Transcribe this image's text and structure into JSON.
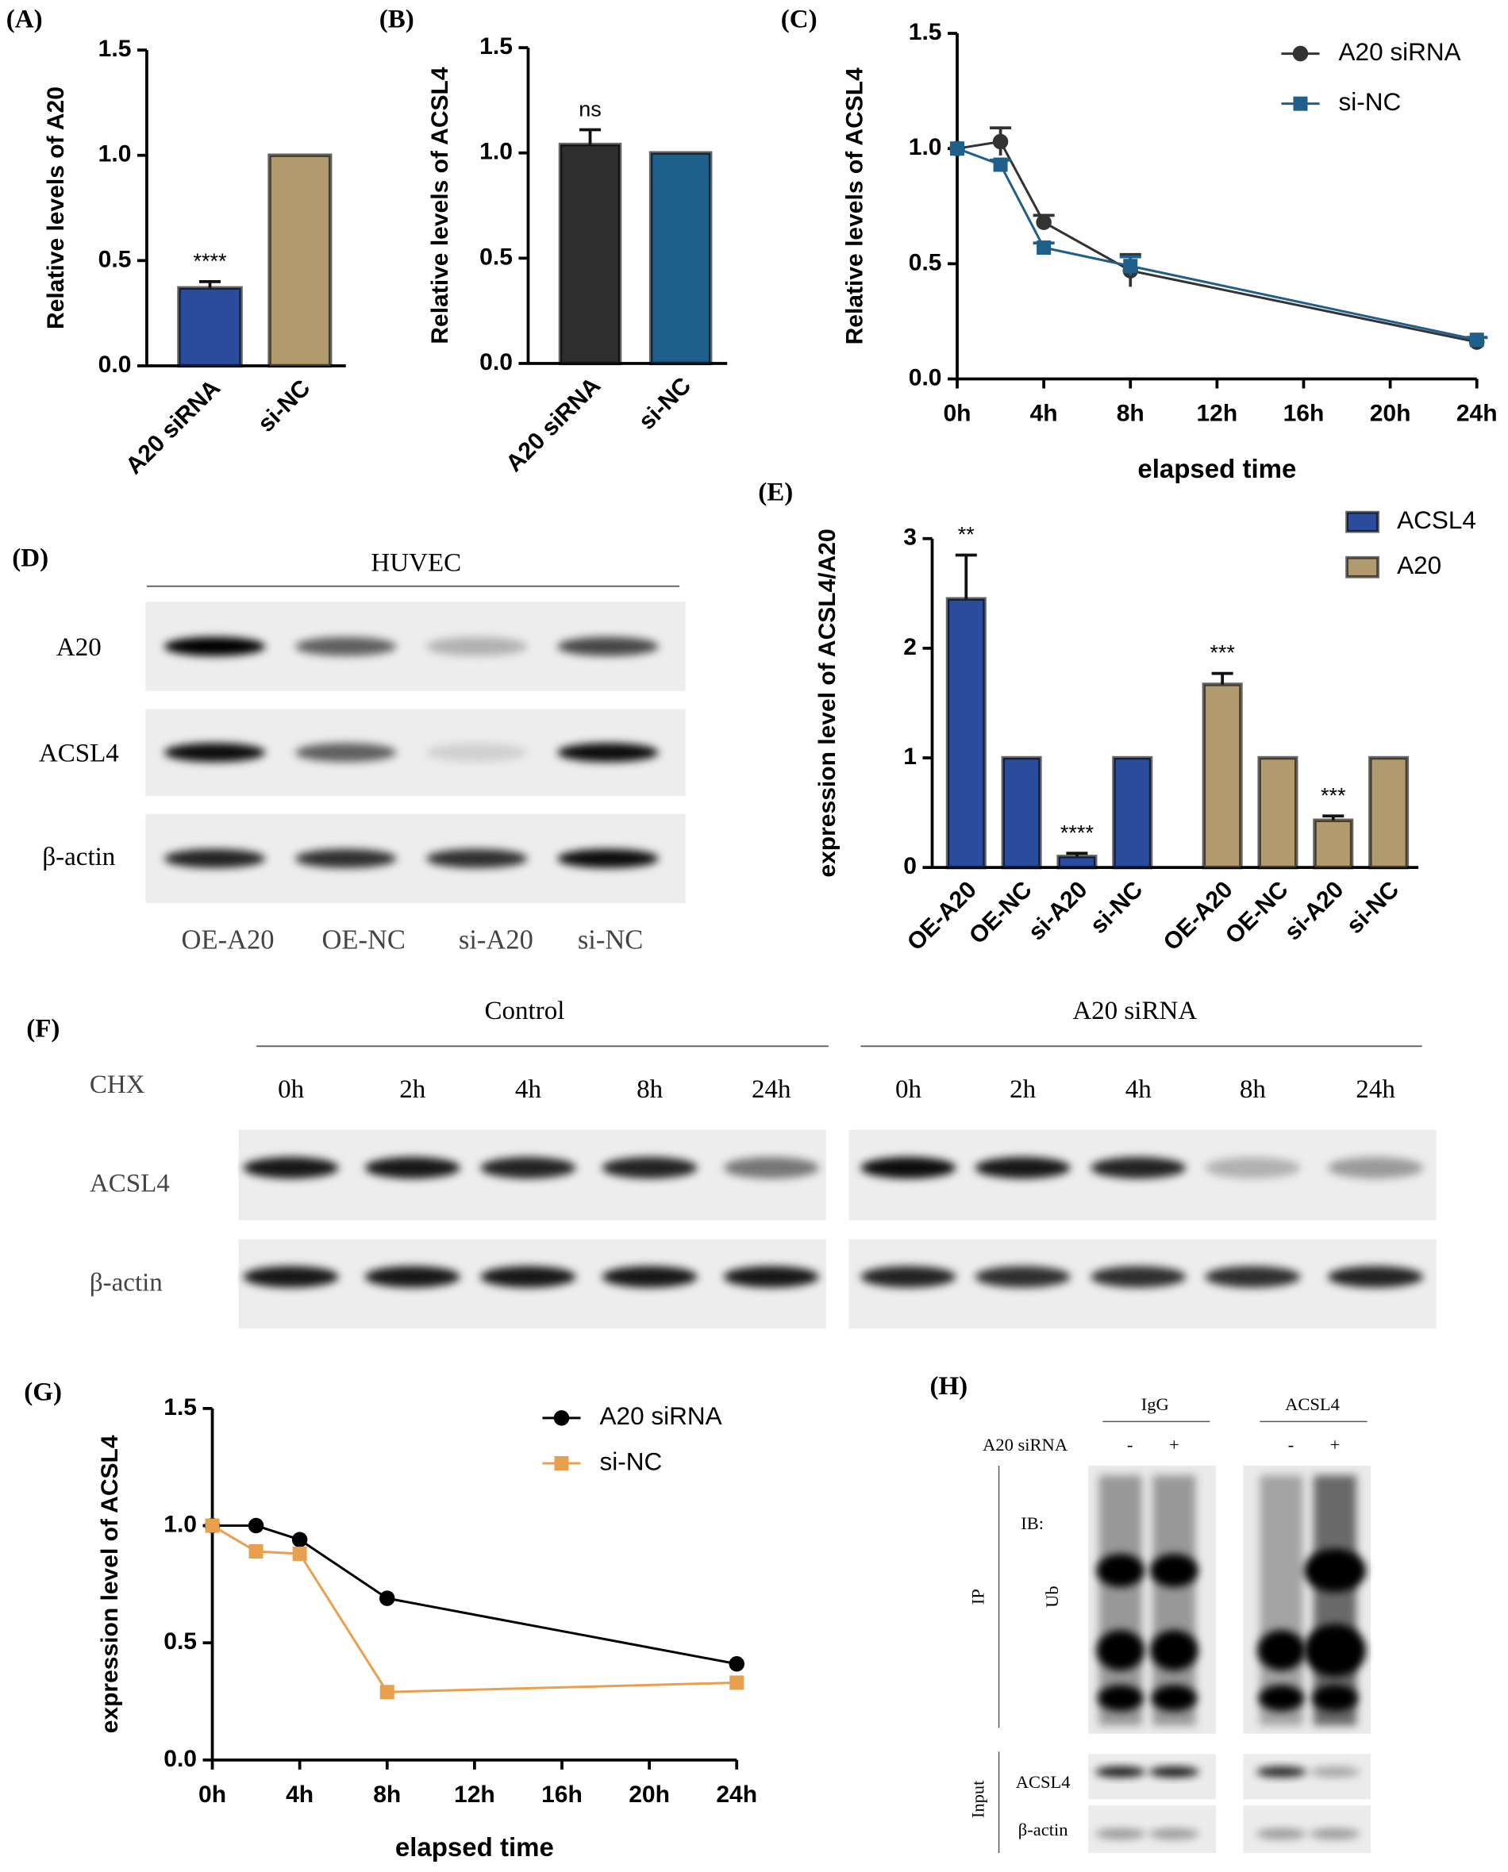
{
  "chart_data": [
    {
      "type": "bar",
      "panel": "(A)",
      "ylabel": "Relative levels of A20",
      "categories": [
        "A20 siRNA",
        "si-NC"
      ],
      "values": [
        0.37,
        1
      ],
      "errors": [
        0.03,
        0
      ],
      "colors": [
        "#2b4c9c",
        "#b09a6e"
      ],
      "significance": [
        "****",
        null
      ],
      "ylim": [
        0,
        1.5
      ],
      "yticks": [
        {
          "value": 0,
          "label": "0.0"
        },
        0.5,
        {
          "value": 1,
          "label": "1.0"
        },
        1.5
      ]
    },
    {
      "type": "bar",
      "panel": "(B)",
      "ylabel": "Relative levels of ACSL4",
      "categories": [
        "A20 siRNA",
        "si-NC"
      ],
      "values": [
        1.04,
        1
      ],
      "errors": [
        0.07,
        0
      ],
      "colors": [
        "#2e2e2e",
        "#1f5f8b"
      ],
      "significance": [
        "ns",
        null
      ],
      "ylim": [
        0,
        1.5
      ],
      "yticks": [
        {
          "value": 0,
          "label": "0.0"
        },
        0.5,
        {
          "value": 1,
          "label": "1.0"
        },
        1.5
      ]
    },
    {
      "type": "line",
      "panel": "(C)",
      "ylabel": "Relative levels of ACSL4",
      "xlabel": "elapsed time",
      "xlim": [
        0,
        24
      ],
      "xticks": [
        {
          "value": 0,
          "label": "0h"
        },
        {
          "value": 4,
          "label": "4h"
        },
        {
          "value": 8,
          "label": "8h"
        },
        {
          "value": 12,
          "label": "12h"
        },
        {
          "value": 16,
          "label": "16h"
        },
        {
          "value": 20,
          "label": "20h"
        },
        {
          "value": 24,
          "label": "24h"
        }
      ],
      "ylim": [
        0,
        1.5
      ],
      "yticks": [
        {
          "value": 0,
          "label": "0.0"
        },
        0.5,
        {
          "value": 1,
          "label": "1.0"
        },
        1.5
      ],
      "series": [
        {
          "name": "A20 siRNA",
          "color": "#333333",
          "marker": "circle",
          "x": [
            0,
            2,
            4,
            8,
            24
          ],
          "values": [
            1,
            1.03,
            0.68,
            0.47,
            0.16
          ],
          "errors": [
            0,
            0.06,
            0.03,
            0.07,
            0.02
          ]
        },
        {
          "name": "si-NC",
          "color": "#1f5f8b",
          "marker": "square",
          "x": [
            0,
            2,
            4,
            8,
            24
          ],
          "values": [
            1,
            0.93,
            0.57,
            0.49,
            0.17
          ],
          "errors": [
            0,
            0.02,
            0.02,
            0.04,
            0.01
          ]
        }
      ]
    },
    {
      "type": "bar",
      "panel": "(E)",
      "ylabel": "expression level of ACSL4/A20",
      "categories": [
        "OE-A20",
        "OE-NC",
        "si-A20",
        "si-NC"
      ],
      "ylim": [
        0,
        3
      ],
      "yticks": [
        0,
        1,
        2,
        3
      ],
      "series": [
        {
          "name": "ACSL4",
          "color": "#2b4c9c",
          "values": [
            2.45,
            1,
            0.1,
            1
          ],
          "errors": [
            0.4,
            0,
            0.03,
            0
          ],
          "significance": [
            "**",
            null,
            "****",
            null
          ]
        },
        {
          "name": "A20",
          "color": "#b09a6e",
          "values": [
            1.67,
            1,
            0.43,
            1
          ],
          "errors": [
            0.1,
            0,
            0.04,
            0
          ],
          "significance": [
            "***",
            null,
            "***",
            null
          ]
        }
      ]
    },
    {
      "type": "line",
      "panel": "(G)",
      "ylabel": "expression level of ACSL4",
      "xlabel": "elapsed time",
      "xlim": [
        0,
        24
      ],
      "xticks": [
        {
          "value": 0,
          "label": "0h"
        },
        {
          "value": 4,
          "label": "4h"
        },
        {
          "value": 8,
          "label": "8h"
        },
        {
          "value": 12,
          "label": "12h"
        },
        {
          "value": 16,
          "label": "16h"
        },
        {
          "value": 20,
          "label": "20h"
        },
        {
          "value": 24,
          "label": "24h"
        }
      ],
      "ylim": [
        0,
        1.5
      ],
      "yticks": [
        {
          "value": 0,
          "label": "0.0"
        },
        0.5,
        {
          "value": 1,
          "label": "1.0"
        },
        1.5
      ],
      "series": [
        {
          "name": "A20 siRNA",
          "color": "#000000",
          "marker": "circle",
          "x": [
            0,
            2,
            4,
            8,
            24
          ],
          "values": [
            1,
            1,
            0.94,
            0.69,
            0.41
          ]
        },
        {
          "name": "si-NC",
          "color": "#e8a04f",
          "marker": "square",
          "x": [
            0,
            2,
            4,
            8,
            24
          ],
          "values": [
            1,
            0.89,
            0.88,
            0.29,
            0.33
          ]
        }
      ]
    }
  ],
  "blot_D": {
    "panel": "(D)",
    "title": "HUVEC",
    "rows": [
      "A20",
      "ACSL4",
      "β-actin"
    ],
    "lanes": [
      "OE-A20",
      "OE-NC",
      "si-A20",
      "si-NC"
    ]
  },
  "blot_F": {
    "panel": "(F)",
    "treatment": "CHX",
    "groups": [
      "Control",
      "A20 siRNA"
    ],
    "times": [
      "0h",
      "2h",
      "4h",
      "8h",
      "24h"
    ],
    "rows": [
      "ACSL4",
      "β-actin"
    ]
  },
  "blot_H": {
    "panel": "(H)",
    "groups": [
      "IgG",
      "ACSL4"
    ],
    "treatment": "A20 siRNA",
    "signs": [
      "-",
      "+"
    ],
    "ip": "IP",
    "ib": "IB:",
    "ib_target": "Ub",
    "input": "Input",
    "input_rows": [
      "ACSL4",
      "β-actin"
    ]
  }
}
